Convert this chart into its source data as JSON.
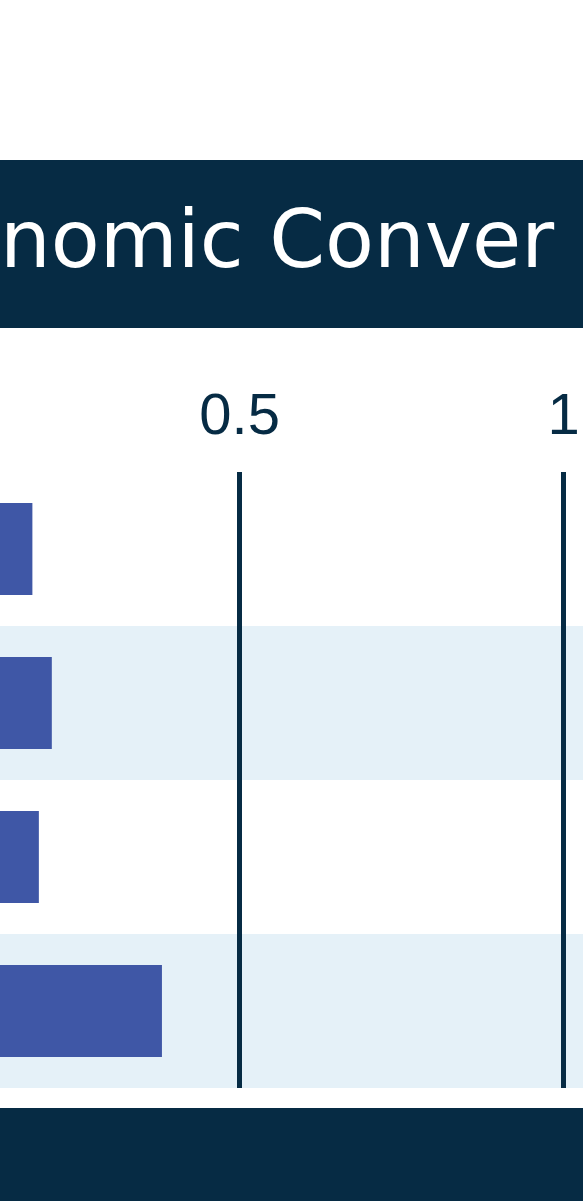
{
  "chart_data": {
    "type": "bar",
    "orientation": "horizontal",
    "title": "nomic Conver",
    "categories": [
      null,
      null,
      null,
      null
    ],
    "values": [
      0.18,
      0.21,
      0.19,
      0.38
    ],
    "color": "#3f57a6",
    "xlim": [
      0.13,
      1.03
    ],
    "xticks": [
      0.5,
      1
    ],
    "grid": "x",
    "tick_labels": "x"
  }
}
